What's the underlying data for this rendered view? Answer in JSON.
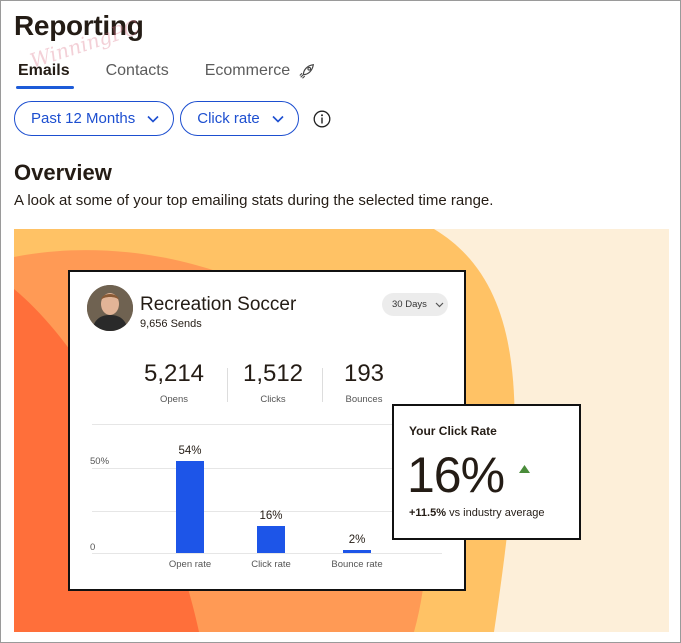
{
  "page": {
    "title": "Reporting",
    "watermark": "WinningPC"
  },
  "tabs": [
    {
      "label": "Emails",
      "active": true
    },
    {
      "label": "Contacts",
      "active": false
    },
    {
      "label": "Ecommerce",
      "active": false,
      "icon": "rocket-icon"
    }
  ],
  "filters": {
    "range": "Past 12 Months",
    "metric": "Click rate",
    "info_icon": "info-icon"
  },
  "overview": {
    "title": "Overview",
    "subtitle": "A look at some of your top emailing stats during the selected time range."
  },
  "preview_card": {
    "title": "Recreation Soccer",
    "sends": "9,656 Sends",
    "period": "30 Days",
    "stats": [
      {
        "value": "5,214",
        "label": "Opens"
      },
      {
        "value": "1,512",
        "label": "Clicks"
      },
      {
        "value": "193",
        "label": "Bounces"
      }
    ]
  },
  "chart_data": {
    "type": "bar",
    "categories": [
      "Open rate",
      "Click rate",
      "Bounce rate"
    ],
    "values": [
      54,
      16,
      2
    ],
    "value_labels": [
      "54%",
      "16%",
      "2%"
    ],
    "y_ticks": [
      "50%",
      "0"
    ],
    "ylim": [
      0,
      60
    ],
    "color": "#1d55e8"
  },
  "click_rate_card": {
    "title": "Your Click Rate",
    "value": "16%",
    "delta": "+11.5%",
    "delta_suffix": "vs industry average",
    "up_color": "#4a8c3a"
  },
  "colors": {
    "accent": "#1d4fd0",
    "hero_bg": "#fdefd9",
    "blob_light": "#ffc265",
    "blob_mid": "#ff9a55",
    "blob_dark": "#ff6f3a"
  }
}
